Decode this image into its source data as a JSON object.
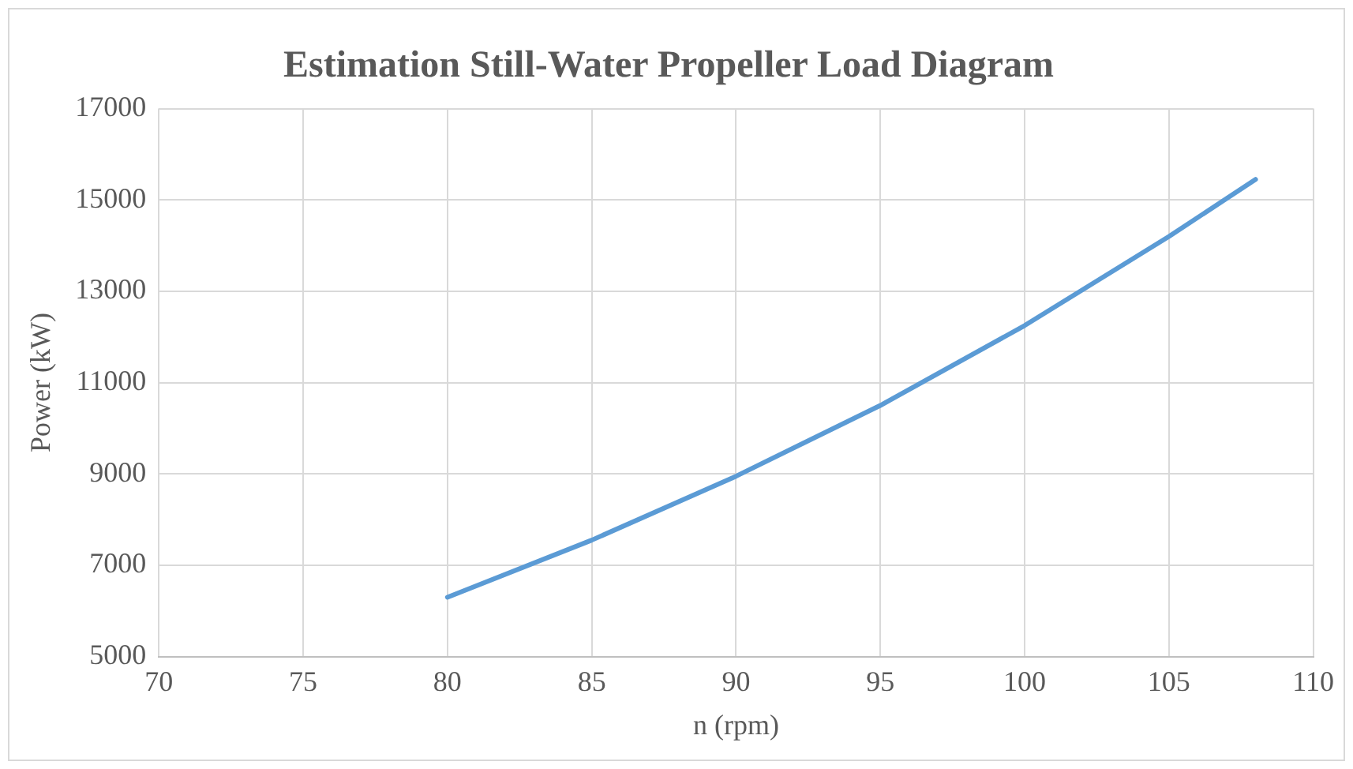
{
  "chart_data": {
    "type": "line",
    "title": "Estimation Still-Water Propeller Load Diagram",
    "xlabel": "n (rpm)",
    "ylabel": "Power (kW)",
    "x": [
      80,
      85,
      90,
      95,
      100,
      105,
      108
    ],
    "series": [
      {
        "color": "#5b9bd5",
        "values": [
          6300,
          7550,
          8950,
          10500,
          12250,
          14200,
          15450
        ]
      }
    ],
    "xlim": [
      70,
      110
    ],
    "xticks": [
      70,
      75,
      80,
      85,
      90,
      95,
      100,
      105,
      110
    ],
    "ylim": [
      5000,
      17000
    ],
    "yticks": [
      5000,
      7000,
      9000,
      11000,
      13000,
      15000,
      17000
    ],
    "grid": true,
    "legend": false,
    "marker": "none",
    "line_style": "solid"
  }
}
